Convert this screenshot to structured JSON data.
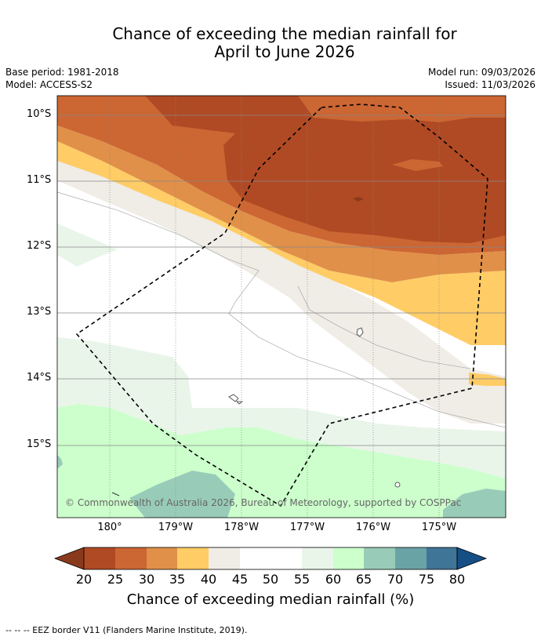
{
  "title_line1": "Chance of exceeding the median rainfall for",
  "title_line2": "April to June 2026",
  "meta": {
    "base_period": "Base period: 1981-2018",
    "model": "Model: ACCESS-S2",
    "model_run": "Model run: 09/03/2026",
    "issued": "Issued: 11/03/2026"
  },
  "lat_labels": [
    "10°S",
    "11°S",
    "12°S",
    "13°S",
    "14°S",
    "15°S"
  ],
  "lon_labels": [
    "180°",
    "179°W",
    "178°W",
    "177°W",
    "176°W",
    "175°W"
  ],
  "copyright": "© Commonwealth of Australia 2026, Bureau of Meteorology, supported by COSPPac",
  "colorbar": {
    "ticks": [
      "20",
      "25",
      "30",
      "35",
      "40",
      "45",
      "50",
      "55",
      "60",
      "65",
      "70",
      "75",
      "80"
    ],
    "colors": {
      "below20": "#8a3a1c",
      "c20_25": "#b04a24",
      "c25_30": "#cc6633",
      "c30_35": "#e09048",
      "c35_40": "#ffcc66",
      "c40_45": "#f0ece6",
      "c45_50": "#ffffff",
      "c50_55": "#ffffff",
      "c55_60": "#eaf5ea",
      "c60_65": "#ccffcc",
      "c65_70": "#99ccb8",
      "c70_75": "#6aa3a6",
      "c75_80": "#3f7596",
      "above80": "#164f86"
    },
    "label": "Chance of exceeding median rainfall (%)"
  },
  "footer": "--  --  -- EEZ border V11 (Flanders Marine Institute, 2019)."
}
